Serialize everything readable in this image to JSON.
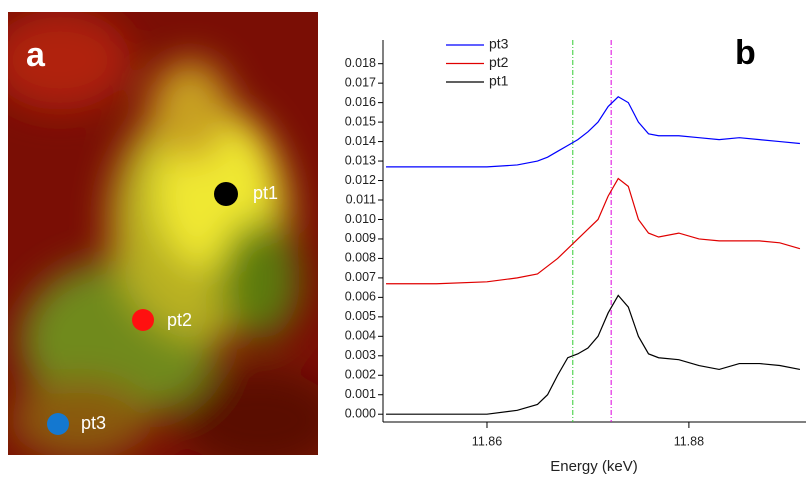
{
  "image": {
    "panel_label": "a",
    "points": [
      "pt1",
      "pt2",
      "pt3"
    ]
  },
  "chart_data": {
    "type": "line",
    "panel_label": "b",
    "x_label": "Energy (keV)",
    "x": [
      11.85,
      11.855,
      11.86,
      11.863,
      11.865,
      11.866,
      11.867,
      11.868,
      11.869,
      11.87,
      11.871,
      11.872,
      11.873,
      11.874,
      11.875,
      11.876,
      11.877,
      11.879,
      11.881,
      11.883,
      11.885,
      11.887,
      11.889,
      11.891
    ],
    "series": [
      {
        "name": "pt3",
        "color": "#0000ff",
        "values": [
          0.0127,
          0.0127,
          0.0127,
          0.0128,
          0.013,
          0.0132,
          0.0135,
          0.0138,
          0.0141,
          0.0145,
          0.015,
          0.0158,
          0.0163,
          0.016,
          0.015,
          0.0144,
          0.0143,
          0.0143,
          0.0142,
          0.0141,
          0.0142,
          0.0141,
          0.014,
          0.0139
        ]
      },
      {
        "name": "pt2",
        "color": "#e00000",
        "values": [
          0.0067,
          0.0067,
          0.0068,
          0.007,
          0.0072,
          0.0076,
          0.008,
          0.0085,
          0.009,
          0.0095,
          0.01,
          0.0112,
          0.0121,
          0.0117,
          0.01,
          0.0093,
          0.0091,
          0.0093,
          0.009,
          0.0089,
          0.0089,
          0.0089,
          0.0088,
          0.0085
        ]
      },
      {
        "name": "pt1",
        "color": "#000000",
        "values": [
          0.0,
          0.0,
          0.0,
          0.0002,
          0.0005,
          0.001,
          0.002,
          0.0029,
          0.0031,
          0.0034,
          0.004,
          0.0052,
          0.0061,
          0.0055,
          0.004,
          0.0031,
          0.0029,
          0.0028,
          0.0025,
          0.0023,
          0.0026,
          0.0026,
          0.0025,
          0.0023
        ]
      }
    ],
    "reference_lines": [
      {
        "x": 11.8685,
        "color": "#33cc33"
      },
      {
        "x": 11.8723,
        "color": "#dd00dd"
      }
    ],
    "xlim": [
      11.8497,
      11.8916
    ],
    "xticks": [
      11.86,
      11.88
    ],
    "ylim": [
      -0.0004,
      0.0186
    ],
    "yticks": [
      {
        "value": 0,
        "label": "0.000"
      },
      0.001,
      0.002,
      0.003,
      0.004,
      0.005,
      0.006,
      0.007,
      0.008,
      0.009,
      {
        "value": 0.01,
        "label": "0.010"
      },
      0.011,
      0.012,
      0.013,
      0.014,
      0.015,
      0.016,
      0.017,
      0.018
    ],
    "legend": "top-left"
  }
}
